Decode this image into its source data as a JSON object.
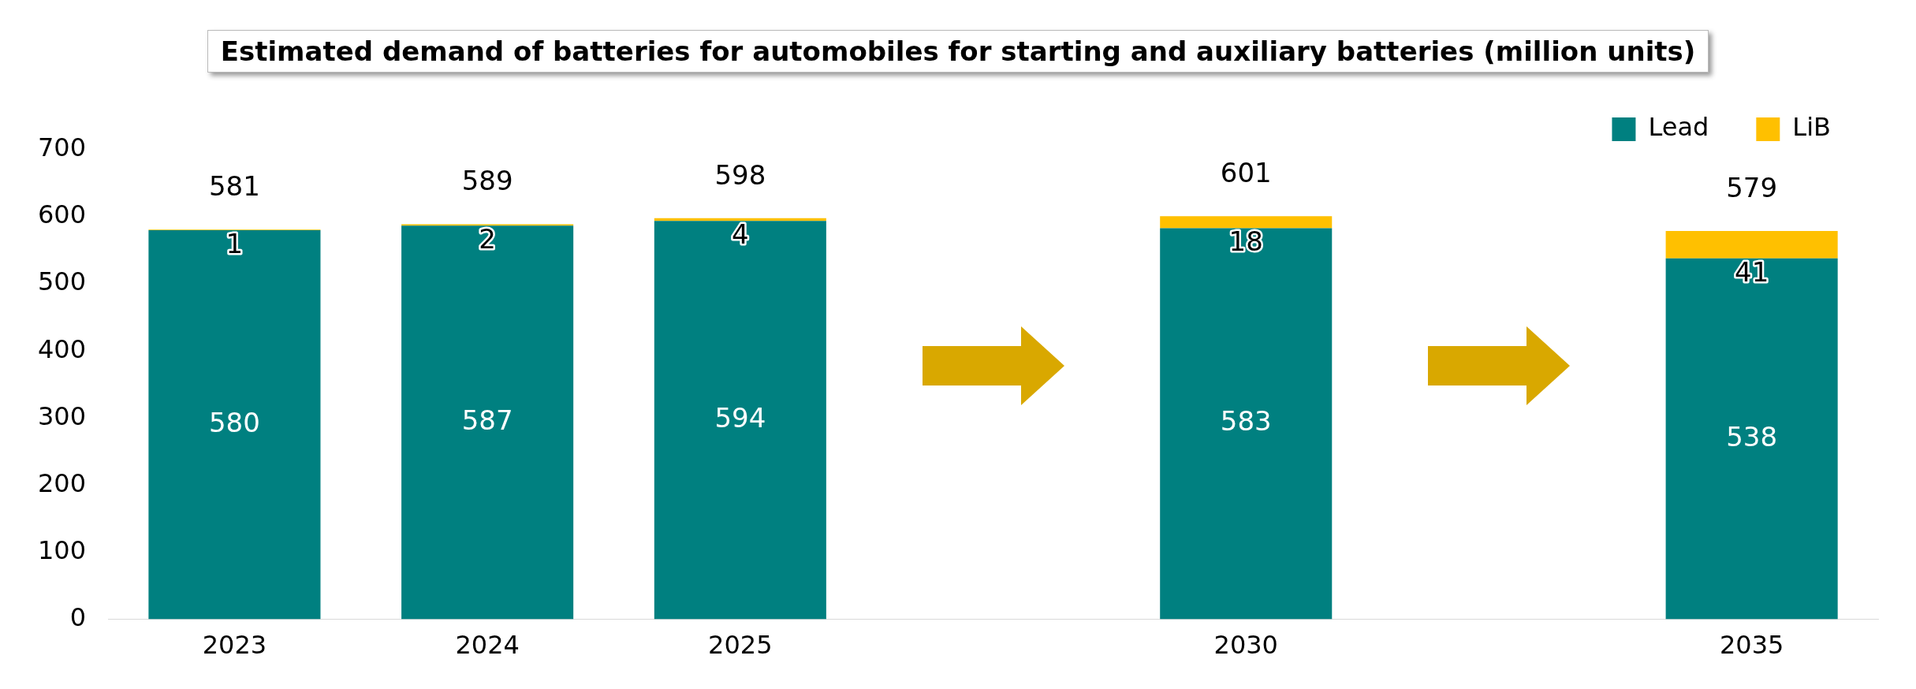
{
  "chart_data": {
    "type": "bar",
    "title": "Estimated demand of batteries for automobiles for starting and auxiliary batteries (million units)",
    "categories": [
      "2023",
      "2024",
      "2025",
      null,
      "2030",
      null,
      "2035"
    ],
    "stacked": true,
    "series": [
      {
        "name": "Lead",
        "color": "#008080",
        "values": [
          580,
          587,
          594,
          null,
          583,
          null,
          538
        ]
      },
      {
        "name": "LiB",
        "color": "#ffc000",
        "values": [
          1,
          2,
          4,
          null,
          18,
          null,
          41
        ]
      }
    ],
    "totals": [
      "581",
      "589",
      "598",
      null,
      "601",
      null,
      "579"
    ],
    "data_labels": true,
    "ylim": [
      0,
      700
    ],
    "yticks": [
      0,
      100,
      200,
      300,
      400,
      500,
      600,
      700
    ],
    "legend": "top right"
  }
}
